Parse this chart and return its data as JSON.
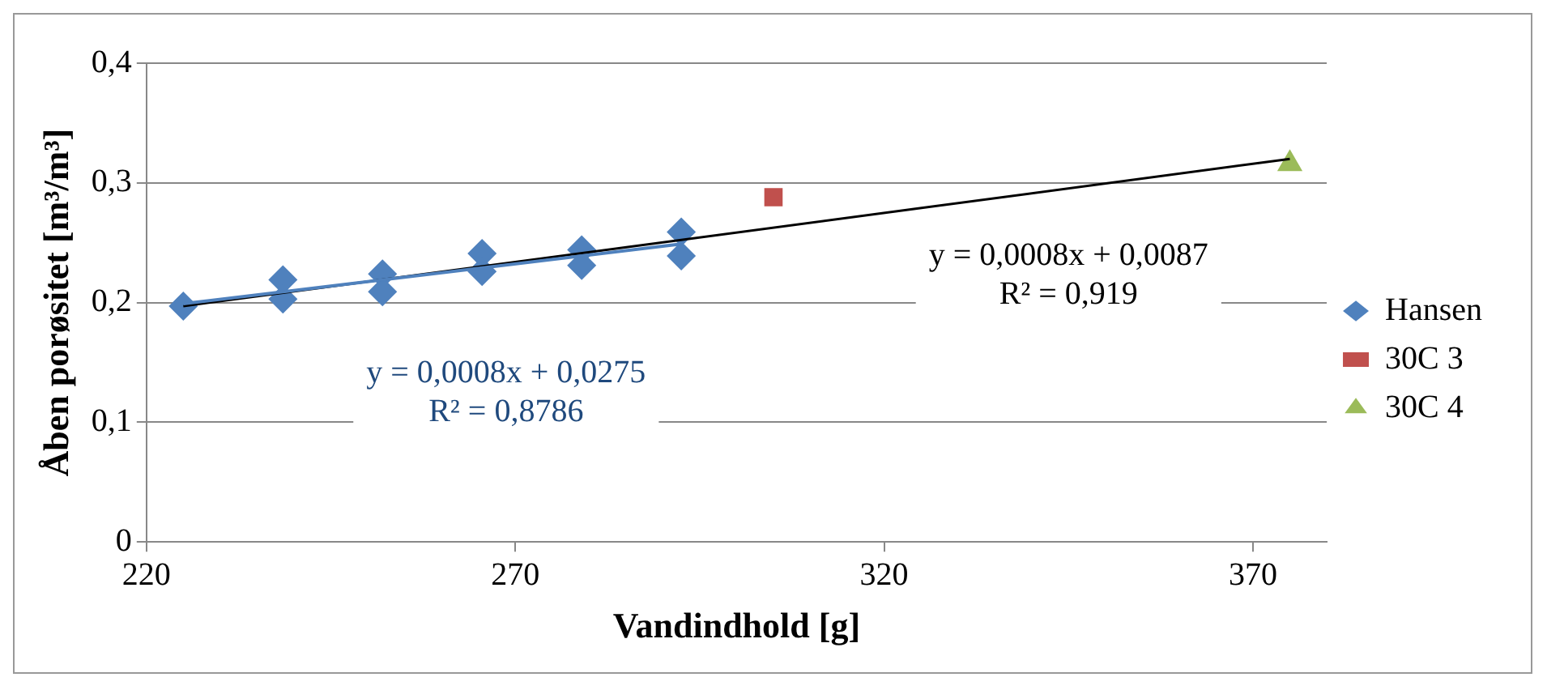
{
  "chart_data": {
    "type": "scatter",
    "xlabel": "Vandindhold [g]",
    "ylabel": "Åben porøsitet [m³/m³]",
    "xlim": [
      220,
      380
    ],
    "xticks": [
      220,
      270,
      320,
      370
    ],
    "ylim": [
      0,
      0.4
    ],
    "yticks": [
      0,
      {
        "value": 0.1,
        "label": "0,1"
      },
      {
        "value": 0.2,
        "label": "0,2"
      },
      {
        "value": 0.3,
        "label": "0,3"
      },
      {
        "value": 0.4,
        "label": "0,4"
      }
    ],
    "grid": "y",
    "legend": "right",
    "series": [
      {
        "name": "Hansen",
        "color": "#4f81bd",
        "marker": "diamond",
        "x": [
          225,
          238.5,
          238.5,
          252,
          252,
          265.5,
          265.5,
          279,
          279,
          292.5,
          292.5
        ],
        "values": [
          0.197,
          0.219,
          0.203,
          0.224,
          0.209,
          0.241,
          0.226,
          0.244,
          0.231,
          0.259,
          0.239
        ]
      },
      {
        "name": "30C 3",
        "color": "#c0504d",
        "marker": "square",
        "x": [
          305
        ],
        "values": [
          0.288
        ]
      },
      {
        "name": "30C 4",
        "color": "#9bbb59",
        "marker": "triangle",
        "x": [
          375
        ],
        "values": [
          0.316
        ]
      },
      {
        "type": "line",
        "color": "#4f81bd",
        "marker": "none",
        "x": [
          225,
          292.5
        ],
        "values": [
          0.199,
          0.249
        ]
      },
      {
        "type": "line",
        "color": "#000000",
        "marker": "none",
        "x": [
          225,
          375
        ],
        "values": [
          0.197,
          0.32
        ]
      }
    ],
    "annotations": [
      "y = 0,0008x + 0,0275\nR² = 0,8786",
      "y = 0,0008x + 0,0087\nR² = 0,919"
    ]
  }
}
